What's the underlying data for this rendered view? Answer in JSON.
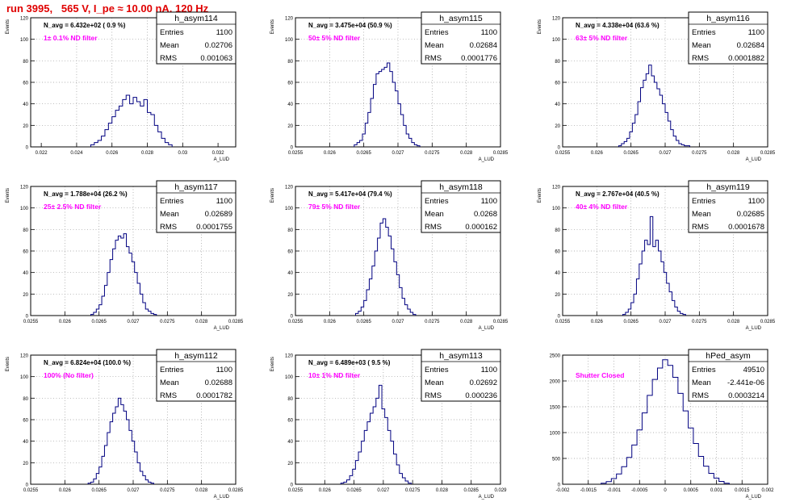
{
  "page_title": "run 3995,   565 V, I_pe ≈ 10.00 nA, 120 Hz",
  "colors": {
    "title": "#e00000",
    "histogram": "#000080",
    "filter_label": "#ff00ff",
    "grid": "#999999",
    "frame": "#000000"
  },
  "chart_data": [
    {
      "type": "histogram",
      "name": "h_asym114",
      "stats": {
        "Entries": "1100",
        "Mean": "0.02706",
        "RMS": "0.001063"
      },
      "navg": "N_avg = 6.432e+02 ( 0.9 %)",
      "filter": "1± 0.1% ND filter",
      "xlabel": "A_LUD",
      "ylabel": "Events",
      "xlim": [
        0.0214,
        0.033
      ],
      "ylim": [
        0,
        120
      ],
      "xticks": [
        0.022,
        0.024,
        0.026,
        0.028,
        0.03,
        0.032
      ],
      "xtick_labels": [
        "0.022",
        "0.024",
        "0.026",
        "0.028",
        "0.03",
        "0.032"
      ],
      "yticks": [
        0,
        20,
        40,
        60,
        80,
        100,
        120
      ],
      "ytick_labels": [
        "0",
        "20",
        "40",
        "60",
        "80",
        "100",
        "120"
      ],
      "bins": {
        "x": [
          0.0249,
          0.0251,
          0.0253,
          0.0255,
          0.0257,
          0.0259,
          0.0261,
          0.0263,
          0.0265,
          0.0267,
          0.0269,
          0.0271,
          0.0273,
          0.0275,
          0.0277,
          0.0279,
          0.0281,
          0.0283,
          0.0285,
          0.0287,
          0.0289,
          0.0291,
          0.0293
        ],
        "y": [
          2,
          4,
          6,
          10,
          16,
          22,
          28,
          34,
          38,
          44,
          48,
          40,
          46,
          42,
          38,
          44,
          32,
          30,
          20,
          14,
          8,
          4,
          2
        ]
      }
    },
    {
      "type": "histogram",
      "name": "h_asym115",
      "stats": {
        "Entries": "1100",
        "Mean": "0.02684",
        "RMS": "0.0001776"
      },
      "navg": "N_avg = 3.475e+04 (50.9 %)",
      "filter": "50± 5% ND filter",
      "xlabel": "A_LUD",
      "ylabel": "Events",
      "xlim": [
        0.0255,
        0.0285
      ],
      "ylim": [
        0,
        120
      ],
      "xticks": [
        0.0255,
        0.026,
        0.0265,
        0.027,
        0.0275,
        0.028,
        0.0285
      ],
      "xtick_labels": [
        "0.0255",
        "0.026",
        "0.0265",
        "0.027",
        "0.0275",
        "0.028",
        "0.0285"
      ],
      "yticks": [
        0,
        20,
        40,
        60,
        80,
        100,
        120
      ],
      "ytick_labels": [
        "0",
        "20",
        "40",
        "60",
        "80",
        "100",
        "120"
      ],
      "bins": {
        "x": [
          0.02638,
          0.02642,
          0.02646,
          0.0265,
          0.02654,
          0.02658,
          0.02662,
          0.02666,
          0.0267,
          0.02674,
          0.02678,
          0.02682,
          0.02686,
          0.0269,
          0.02694,
          0.02698,
          0.02702,
          0.02706,
          0.0271,
          0.02714,
          0.02718,
          0.02722,
          0.02726,
          0.0273
        ],
        "y": [
          2,
          4,
          6,
          12,
          22,
          32,
          45,
          58,
          68,
          70,
          72,
          74,
          78,
          70,
          60,
          52,
          40,
          30,
          20,
          12,
          8,
          4,
          2,
          1
        ]
      }
    },
    {
      "type": "histogram",
      "name": "h_asym116",
      "stats": {
        "Entries": "1100",
        "Mean": "0.02684",
        "RMS": "0.0001882"
      },
      "navg": "N_avg = 4.338e+04 (63.6 %)",
      "filter": "63± 5% ND filter",
      "xlabel": "A_LUD",
      "ylabel": "Events",
      "xlim": [
        0.0255,
        0.0285
      ],
      "ylim": [
        0,
        120
      ],
      "xticks": [
        0.0255,
        0.026,
        0.0265,
        0.027,
        0.0275,
        0.028,
        0.0285
      ],
      "xtick_labels": [
        "0.0255",
        "0.026",
        "0.0265",
        "0.027",
        "0.0275",
        "0.028",
        "0.0285"
      ],
      "yticks": [
        0,
        20,
        40,
        60,
        80,
        100,
        120
      ],
      "ytick_labels": [
        "0",
        "20",
        "40",
        "60",
        "80",
        "100",
        "120"
      ],
      "bins": {
        "x": [
          0.02634,
          0.02638,
          0.02642,
          0.02646,
          0.0265,
          0.02654,
          0.02658,
          0.02662,
          0.02666,
          0.0267,
          0.02674,
          0.02678,
          0.02682,
          0.02686,
          0.0269,
          0.02694,
          0.02698,
          0.02702,
          0.02706,
          0.0271,
          0.02714,
          0.02718,
          0.02722,
          0.02726,
          0.0273,
          0.02734
        ],
        "y": [
          1,
          3,
          5,
          8,
          14,
          22,
          30,
          42,
          55,
          62,
          68,
          76,
          66,
          60,
          54,
          48,
          40,
          32,
          24,
          16,
          10,
          6,
          3,
          2,
          1,
          1
        ]
      }
    },
    {
      "type": "histogram",
      "name": "h_asym117",
      "stats": {
        "Entries": "1100",
        "Mean": "0.02689",
        "RMS": "0.0001755"
      },
      "navg": "N_avg = 1.788e+04 (26.2 %)",
      "filter": "25± 2.5% ND filter",
      "xlabel": "A_LUD",
      "ylabel": "Events",
      "xlim": [
        0.0255,
        0.0285
      ],
      "ylim": [
        0,
        120
      ],
      "xticks": [
        0.0255,
        0.026,
        0.0265,
        0.027,
        0.0275,
        0.028,
        0.0285
      ],
      "xtick_labels": [
        "0.0255",
        "0.026",
        "0.0265",
        "0.027",
        "0.0275",
        "0.028",
        "0.0285"
      ],
      "yticks": [
        0,
        20,
        40,
        60,
        80,
        100,
        120
      ],
      "ytick_labels": [
        "0",
        "20",
        "40",
        "60",
        "80",
        "100",
        "120"
      ],
      "bins": {
        "x": [
          0.0264,
          0.02644,
          0.02648,
          0.02652,
          0.02656,
          0.0266,
          0.02664,
          0.02668,
          0.02672,
          0.02676,
          0.0268,
          0.02684,
          0.02688,
          0.02692,
          0.02696,
          0.027,
          0.02704,
          0.02708,
          0.02712,
          0.02716,
          0.0272,
          0.02724,
          0.02728,
          0.02732
        ],
        "y": [
          1,
          3,
          6,
          10,
          18,
          28,
          40,
          52,
          62,
          70,
          74,
          72,
          76,
          64,
          58,
          50,
          40,
          30,
          20,
          12,
          6,
          4,
          2,
          1
        ]
      }
    },
    {
      "type": "histogram",
      "name": "h_asym118",
      "stats": {
        "Entries": "1100",
        "Mean": "0.0268",
        "RMS": "0.000162"
      },
      "navg": "N_avg = 5.417e+04 (79.4 %)",
      "filter": "79± 5% ND filter",
      "xlabel": "A_LUD",
      "ylabel": "Events",
      "xlim": [
        0.0255,
        0.0285
      ],
      "ylim": [
        0,
        120
      ],
      "xticks": [
        0.0255,
        0.026,
        0.0265,
        0.027,
        0.0275,
        0.028,
        0.0285
      ],
      "xtick_labels": [
        "0.0255",
        "0.026",
        "0.0265",
        "0.027",
        "0.0275",
        "0.028",
        "0.0285"
      ],
      "yticks": [
        0,
        20,
        40,
        60,
        80,
        100,
        120
      ],
      "ytick_labels": [
        "0",
        "20",
        "40",
        "60",
        "80",
        "100",
        "120"
      ],
      "bins": {
        "x": [
          0.0264,
          0.02644,
          0.02648,
          0.02652,
          0.02656,
          0.0266,
          0.02664,
          0.02668,
          0.02672,
          0.02676,
          0.0268,
          0.02684,
          0.02688,
          0.02692,
          0.02696,
          0.027,
          0.02704,
          0.02708,
          0.02712,
          0.02716,
          0.0272,
          0.02724
        ],
        "y": [
          2,
          4,
          8,
          14,
          24,
          34,
          46,
          60,
          72,
          86,
          90,
          82,
          74,
          62,
          50,
          38,
          26,
          16,
          10,
          6,
          3,
          1
        ]
      }
    },
    {
      "type": "histogram",
      "name": "h_asym119",
      "stats": {
        "Entries": "1100",
        "Mean": "0.02685",
        "RMS": "0.0001678"
      },
      "navg": "N_avg = 2.767e+04 (40.5 %)",
      "filter": "40± 4% ND filter",
      "xlabel": "A_LUD",
      "ylabel": "Events",
      "xlim": [
        0.0255,
        0.0285
      ],
      "ylim": [
        0,
        120
      ],
      "xticks": [
        0.0255,
        0.026,
        0.0265,
        0.027,
        0.0275,
        0.028,
        0.0285
      ],
      "xtick_labels": [
        "0.0255",
        "0.026",
        "0.0265",
        "0.027",
        "0.0275",
        "0.028",
        "0.0285"
      ],
      "yticks": [
        0,
        20,
        40,
        60,
        80,
        100,
        120
      ],
      "ytick_labels": [
        "0",
        "20",
        "40",
        "60",
        "80",
        "100",
        "120"
      ],
      "bins": {
        "x": [
          0.0264,
          0.02644,
          0.02648,
          0.02652,
          0.02656,
          0.0266,
          0.02664,
          0.02668,
          0.02672,
          0.02676,
          0.0268,
          0.02684,
          0.02688,
          0.02692,
          0.02696,
          0.027,
          0.02704,
          0.02708,
          0.02712,
          0.02716,
          0.0272,
          0.02724,
          0.02728
        ],
        "y": [
          1,
          3,
          6,
          12,
          20,
          34,
          48,
          60,
          70,
          66,
          92,
          64,
          70,
          60,
          50,
          40,
          30,
          22,
          14,
          8,
          4,
          2,
          1
        ]
      }
    },
    {
      "type": "histogram",
      "name": "h_asym112",
      "stats": {
        "Entries": "1100",
        "Mean": "0.02688",
        "RMS": "0.0001782"
      },
      "navg": "N_avg = 6.824e+04 (100.0 %)",
      "filter": "100% (No filter)",
      "xlabel": "A_LUD",
      "ylabel": "Events",
      "xlim": [
        0.0255,
        0.0285
      ],
      "ylim": [
        0,
        120
      ],
      "xticks": [
        0.0255,
        0.026,
        0.0265,
        0.027,
        0.0275,
        0.028,
        0.0285
      ],
      "xtick_labels": [
        "0.0255",
        "0.026",
        "0.0265",
        "0.027",
        "0.0275",
        "0.028",
        "0.0285"
      ],
      "yticks": [
        0,
        20,
        40,
        60,
        80,
        100,
        120
      ],
      "ytick_labels": [
        "0",
        "20",
        "40",
        "60",
        "80",
        "100",
        "120"
      ],
      "bins": {
        "x": [
          0.02636,
          0.0264,
          0.02644,
          0.02648,
          0.02652,
          0.02656,
          0.0266,
          0.02664,
          0.02668,
          0.02672,
          0.02676,
          0.0268,
          0.02684,
          0.02688,
          0.02692,
          0.02696,
          0.027,
          0.02704,
          0.02708,
          0.02712,
          0.02716,
          0.0272,
          0.02724,
          0.02728
        ],
        "y": [
          1,
          2,
          5,
          10,
          16,
          26,
          36,
          48,
          58,
          66,
          72,
          80,
          74,
          68,
          60,
          50,
          40,
          30,
          20,
          12,
          8,
          4,
          2,
          1
        ]
      }
    },
    {
      "type": "histogram",
      "name": "h_asym113",
      "stats": {
        "Entries": "1100",
        "Mean": "0.02692",
        "RMS": "0.000236"
      },
      "navg": "N_avg = 6.489e+03 ( 9.5 %)",
      "filter": "10± 1% ND filter",
      "xlabel": "A_LUD",
      "ylabel": "Events",
      "xlim": [
        0.0255,
        0.029
      ],
      "ylim": [
        0,
        120
      ],
      "xticks": [
        0.0255,
        0.026,
        0.0265,
        0.027,
        0.0275,
        0.028,
        0.0285,
        0.029
      ],
      "xtick_labels": [
        "0.0255",
        "0.026",
        "0.0265",
        "0.027",
        "0.0275",
        "0.028",
        "0.0285",
        "0.029"
      ],
      "yticks": [
        0,
        20,
        40,
        60,
        80,
        100,
        120
      ],
      "ytick_labels": [
        "0",
        "20",
        "40",
        "60",
        "80",
        "100",
        "120"
      ],
      "bins": {
        "x": [
          0.0263,
          0.02635,
          0.0264,
          0.02645,
          0.0265,
          0.02655,
          0.0266,
          0.02665,
          0.0267,
          0.02675,
          0.0268,
          0.02685,
          0.0269,
          0.02695,
          0.027,
          0.02705,
          0.0271,
          0.02715,
          0.0272,
          0.02725,
          0.0273,
          0.02735,
          0.0274,
          0.02745
        ],
        "y": [
          1,
          2,
          4,
          8,
          14,
          22,
          30,
          40,
          50,
          58,
          66,
          72,
          80,
          92,
          70,
          62,
          50,
          40,
          28,
          18,
          10,
          6,
          3,
          1
        ]
      }
    },
    {
      "type": "histogram",
      "name": "hPed_asym",
      "stats": {
        "Entries": "49510",
        "Mean": "-2.441e-06",
        "RMS": "0.0003214"
      },
      "navg": "",
      "filter": "Shutter Closed",
      "xlabel": "A_LUD",
      "ylabel": "",
      "xlim": [
        -0.002,
        0.002
      ],
      "ylim": [
        0,
        2500
      ],
      "xticks": [
        -0.002,
        -0.0015,
        -0.001,
        -0.0005,
        0,
        0.0005,
        0.001,
        0.0015,
        0.002
      ],
      "xtick_labels": [
        "-0.002",
        "-0.0015",
        "-0.001",
        "-0.0005",
        "0",
        "0.0005",
        "0.001",
        "0.0015",
        "0.002"
      ],
      "yticks": [
        0,
        500,
        1000,
        1500,
        2000,
        2500
      ],
      "ytick_labels": [
        "0",
        "500",
        "1000",
        "1500",
        "2000",
        "2500"
      ],
      "bins": {
        "x": [
          -0.0012,
          -0.0011,
          -0.001,
          -0.0009,
          -0.0008,
          -0.0007,
          -0.0006,
          -0.0005,
          -0.0004,
          -0.0003,
          -0.0002,
          -0.0001,
          0,
          0.0001,
          0.0002,
          0.0003,
          0.0004,
          0.0005,
          0.0006,
          0.0007,
          0.0008,
          0.0009,
          0.001,
          0.0011,
          0.0012
        ],
        "y": [
          20,
          50,
          110,
          200,
          340,
          520,
          760,
          1050,
          1380,
          1720,
          2030,
          2250,
          2410,
          2300,
          2070,
          1760,
          1420,
          1090,
          790,
          540,
          350,
          210,
          120,
          55,
          20
        ]
      }
    }
  ]
}
